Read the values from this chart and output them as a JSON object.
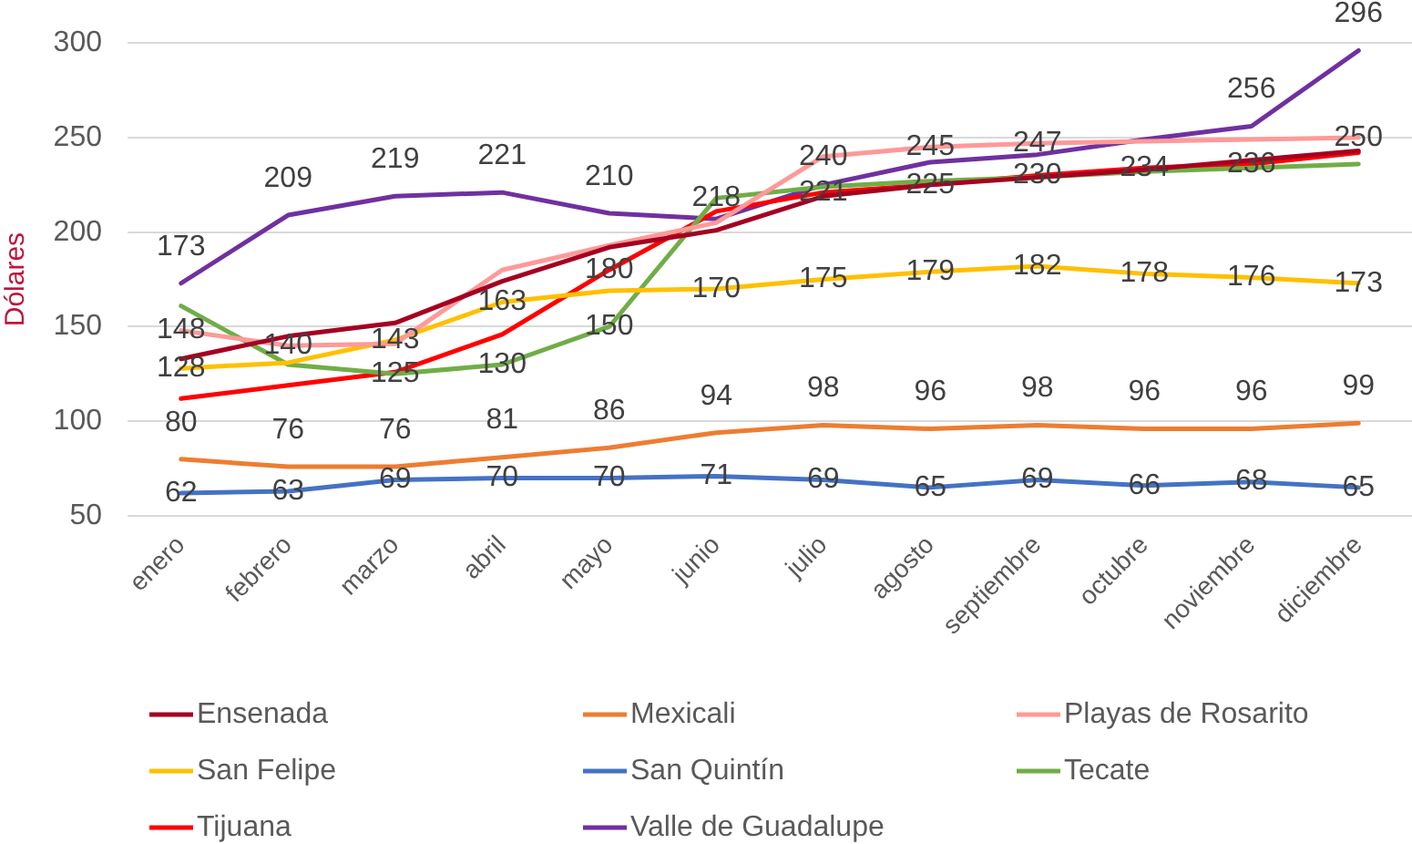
{
  "chart_data": {
    "type": "line",
    "ylabel": "Dólares",
    "categories": [
      "enero",
      "febrero",
      "marzo",
      "abril",
      "mayo",
      "junio",
      "julio",
      "agosto",
      "septiembre",
      "octubre",
      "noviembre",
      "diciembre"
    ],
    "series": [
      {
        "name": "Ensenada",
        "color": "#a50021",
        "values": [
          133,
          145,
          152,
          174,
          192,
          201,
          219,
          225,
          229,
          233,
          238,
          243
        ]
      },
      {
        "name": "Mexicali",
        "color": "#ed7d31",
        "values": [
          80,
          76,
          76,
          81,
          86,
          94,
          98,
          96,
          98,
          96,
          96,
          99
        ],
        "value_labels": [
          "80",
          "76",
          "76",
          "81",
          "86",
          "94",
          "98",
          "96",
          "98",
          "96",
          "96",
          "99"
        ]
      },
      {
        "name": "Playas de Rosarito",
        "color": "#ff9999",
        "values": [
          148,
          140,
          141,
          180,
          193,
          205,
          240,
          245,
          247,
          248,
          249,
          250
        ],
        "value_labels": [
          "148",
          "140",
          null,
          null,
          null,
          null,
          "240",
          "245",
          "247",
          null,
          null,
          "250"
        ]
      },
      {
        "name": "San Felipe",
        "color": "#ffc000",
        "values": [
          128,
          131,
          143,
          163,
          169,
          170,
          175,
          179,
          182,
          178,
          176,
          173
        ],
        "value_labels": [
          "128",
          null,
          "143",
          "163",
          null,
          "170",
          "175",
          "179",
          "182",
          "178",
          "176",
          "173"
        ]
      },
      {
        "name": "San Quintín",
        "color": "#4472c4",
        "values": [
          62,
          63,
          69,
          70,
          70,
          71,
          69,
          65,
          69,
          66,
          68,
          65
        ],
        "value_labels": [
          "62",
          "63",
          "69",
          "70",
          "70",
          "71",
          "69",
          "65",
          "69",
          "66",
          "68",
          "65"
        ]
      },
      {
        "name": "Tecate",
        "color": "#70ad47",
        "values": [
          161,
          130,
          125,
          130,
          150,
          218,
          224,
          227,
          229,
          232,
          234,
          236
        ],
        "value_labels": [
          null,
          null,
          "125",
          "130",
          "150",
          "218",
          null,
          null,
          null,
          null,
          null,
          null
        ]
      },
      {
        "name": "Tijuana",
        "color": "#ff0000",
        "values": [
          112,
          119,
          126,
          146,
          180,
          211,
          221,
          225,
          230,
          234,
          236,
          242
        ],
        "value_labels": [
          null,
          null,
          null,
          null,
          "180",
          null,
          "221",
          "225",
          "230",
          "234",
          "236",
          null
        ]
      },
      {
        "name": "Valle de Guadalupe",
        "color": "#7030a0",
        "values": [
          173,
          209,
          219,
          221,
          210,
          207,
          225,
          237,
          241,
          249,
          256,
          296
        ],
        "value_labels": [
          "173",
          "209",
          "219",
          "221",
          "210",
          null,
          null,
          null,
          null,
          null,
          "256",
          "296"
        ]
      }
    ],
    "ylim": [
      50,
      300
    ],
    "yticks": [
      50,
      100,
      150,
      200,
      250,
      300
    ],
    "grid": "y",
    "legend": "bottom"
  }
}
